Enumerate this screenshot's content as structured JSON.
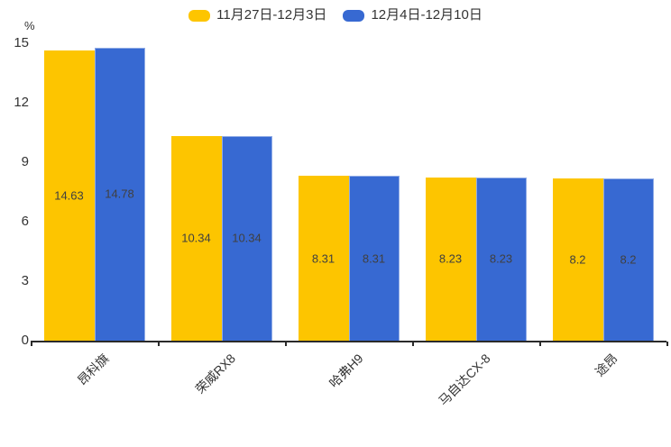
{
  "chart_data": {
    "type": "bar",
    "title": "",
    "unit_label": "%",
    "categories": [
      "昂科旗",
      "荣威RX8",
      "哈弗H9",
      "马自达CX-8",
      "途昂"
    ],
    "series": [
      {
        "name": "11月27日-12月3日",
        "color": "#FDC500",
        "values": [
          14.63,
          10.34,
          8.31,
          8.23,
          8.2
        ]
      },
      {
        "name": "12月4日-12月10日",
        "color": "#3769D2",
        "values": [
          14.78,
          10.34,
          8.31,
          8.23,
          8.2
        ]
      }
    ],
    "ylim": [
      0,
      15
    ],
    "yticks": [
      0,
      3,
      6,
      9,
      12,
      15
    ],
    "ylabel": "%",
    "xlabel": "",
    "grid": false,
    "legend_position": "top",
    "value_labels": true,
    "value_label_position": "inside-center",
    "category_label_rotation_deg": 45
  },
  "colors": {
    "background": "#ffffff",
    "axis": "#2a2a2a",
    "axis_text": "#333333",
    "value_text": "#404040"
  }
}
